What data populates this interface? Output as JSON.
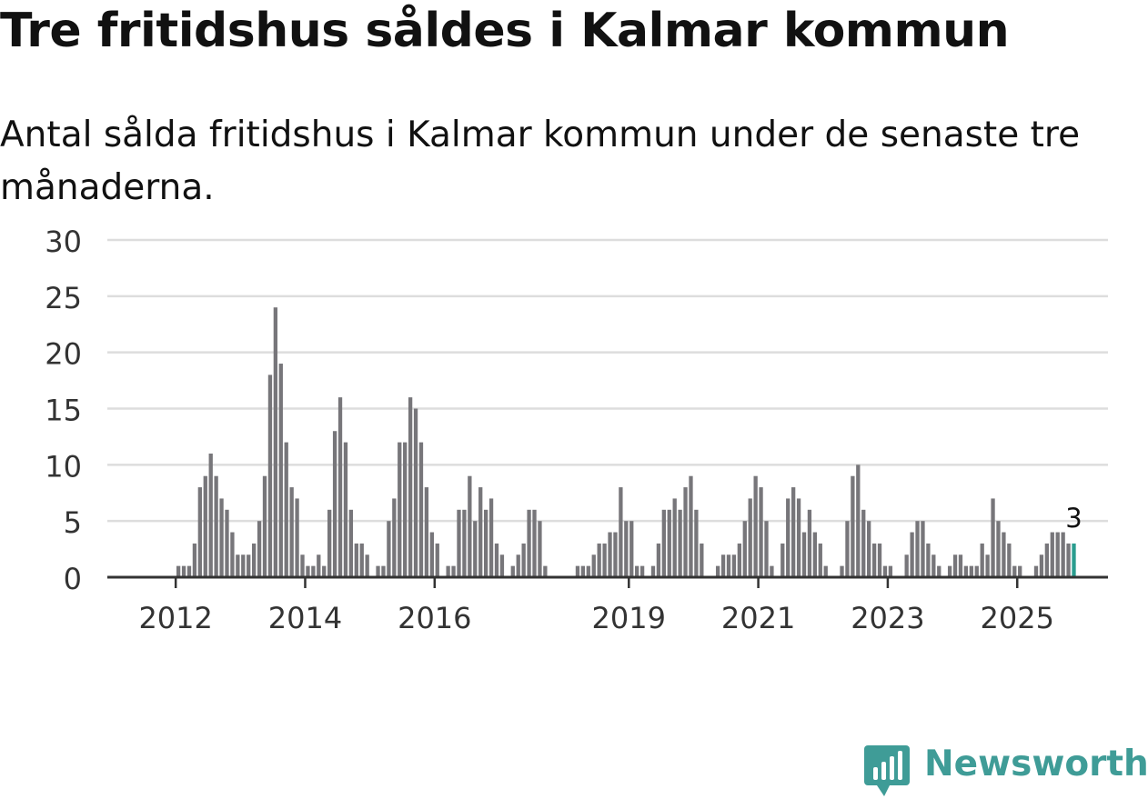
{
  "header": {
    "title": "Tre fritidshus såldes i Kalmar kommun",
    "subtitle": "Antal sålda fritidshus i Kalmar kommun under de senaste tre månaderna."
  },
  "brand": {
    "name": "Newsworthy",
    "icon": "newsworthy-logo-icon",
    "color": "#3f9c97"
  },
  "colors": {
    "bar": "#77767a",
    "highlight": "#2a9d8f",
    "grid": "#dddddd",
    "axis": "#333333",
    "text": "#333333"
  },
  "chart_data": {
    "type": "bar",
    "start": "2011-01",
    "frequency": "monthly",
    "values": [
      0,
      0,
      0,
      0,
      0,
      0,
      0,
      0,
      0,
      0,
      0,
      0,
      1,
      1,
      1,
      3,
      8,
      9,
      11,
      9,
      7,
      6,
      4,
      2,
      2,
      2,
      3,
      5,
      9,
      18,
      24,
      19,
      12,
      8,
      7,
      2,
      1,
      1,
      2,
      1,
      6,
      13,
      16,
      12,
      6,
      3,
      3,
      2,
      0,
      1,
      1,
      5,
      7,
      12,
      12,
      16,
      15,
      12,
      8,
      4,
      3,
      0,
      1,
      1,
      6,
      6,
      9,
      5,
      8,
      6,
      7,
      3,
      2,
      0,
      1,
      2,
      3,
      6,
      6,
      5,
      1,
      0,
      0,
      0,
      0,
      0,
      1,
      1,
      1,
      2,
      3,
      3,
      4,
      4,
      8,
      5,
      5,
      1,
      1,
      0,
      1,
      3,
      6,
      6,
      7,
      6,
      8,
      9,
      6,
      3,
      0,
      0,
      1,
      2,
      2,
      2,
      3,
      5,
      7,
      9,
      8,
      5,
      1,
      0,
      3,
      7,
      8,
      7,
      4,
      6,
      4,
      3,
      1,
      0,
      0,
      1,
      5,
      9,
      10,
      6,
      5,
      3,
      3,
      1,
      1,
      0,
      0,
      2,
      4,
      5,
      5,
      3,
      2,
      1,
      0,
      1,
      2,
      2,
      1,
      1,
      1,
      3,
      2,
      7,
      5,
      4,
      3,
      1,
      1,
      0,
      0,
      1,
      2,
      3,
      4,
      4,
      4,
      3,
      3
    ],
    "highlight_label": "3",
    "x_ticks": [
      "2012",
      "2014",
      "2016",
      "2019",
      "2021",
      "2023",
      "2025"
    ],
    "y_ticks": [
      "0",
      "5",
      "10",
      "15",
      "20",
      "25",
      "30"
    ],
    "ylim": [
      0,
      30
    ],
    "grid": true,
    "xlabel": "",
    "ylabel": ""
  }
}
